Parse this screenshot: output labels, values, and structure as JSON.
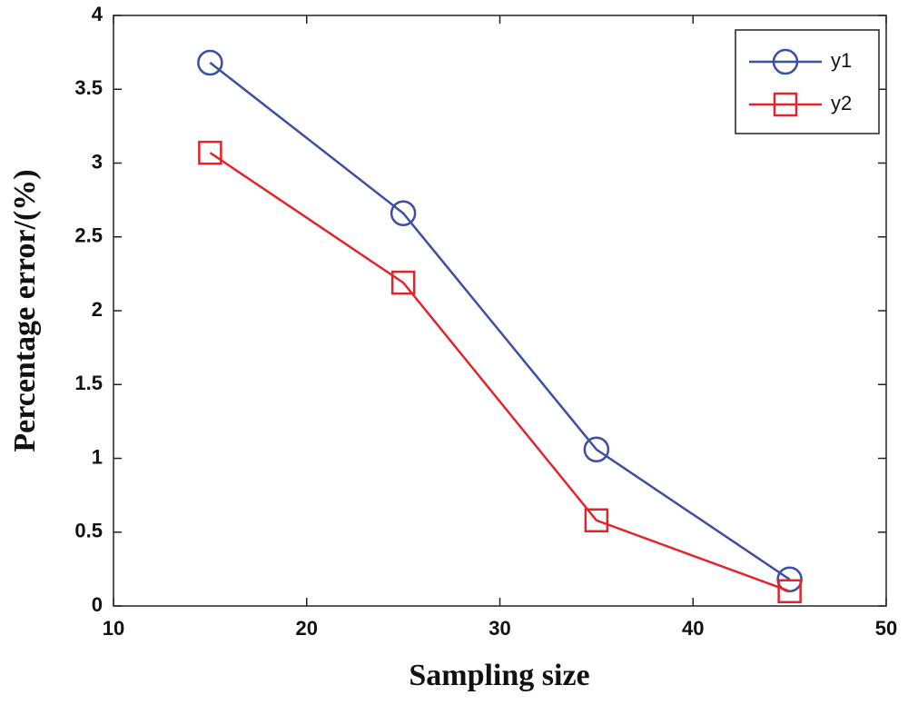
{
  "chart_data": {
    "type": "line",
    "xlabel": "Sampling size",
    "ylabel": "Percentage error/(%)",
    "x": [
      15,
      25,
      35,
      45
    ],
    "series": [
      {
        "name": "y1",
        "color": "#3c4ea6",
        "marker": "circle",
        "values": [
          3.68,
          2.66,
          1.06,
          0.18
        ]
      },
      {
        "name": "y2",
        "color": "#e4222a",
        "marker": "square",
        "values": [
          3.07,
          2.19,
          0.58,
          0.1
        ]
      }
    ],
    "xlim": [
      10,
      50
    ],
    "ylim": [
      0,
      4
    ],
    "xticks": [
      10,
      20,
      30,
      40,
      50
    ],
    "yticks": [
      0,
      0.5,
      1,
      1.5,
      2,
      2.5,
      3,
      3.5,
      4
    ],
    "grid": false,
    "legend": "upper right"
  }
}
